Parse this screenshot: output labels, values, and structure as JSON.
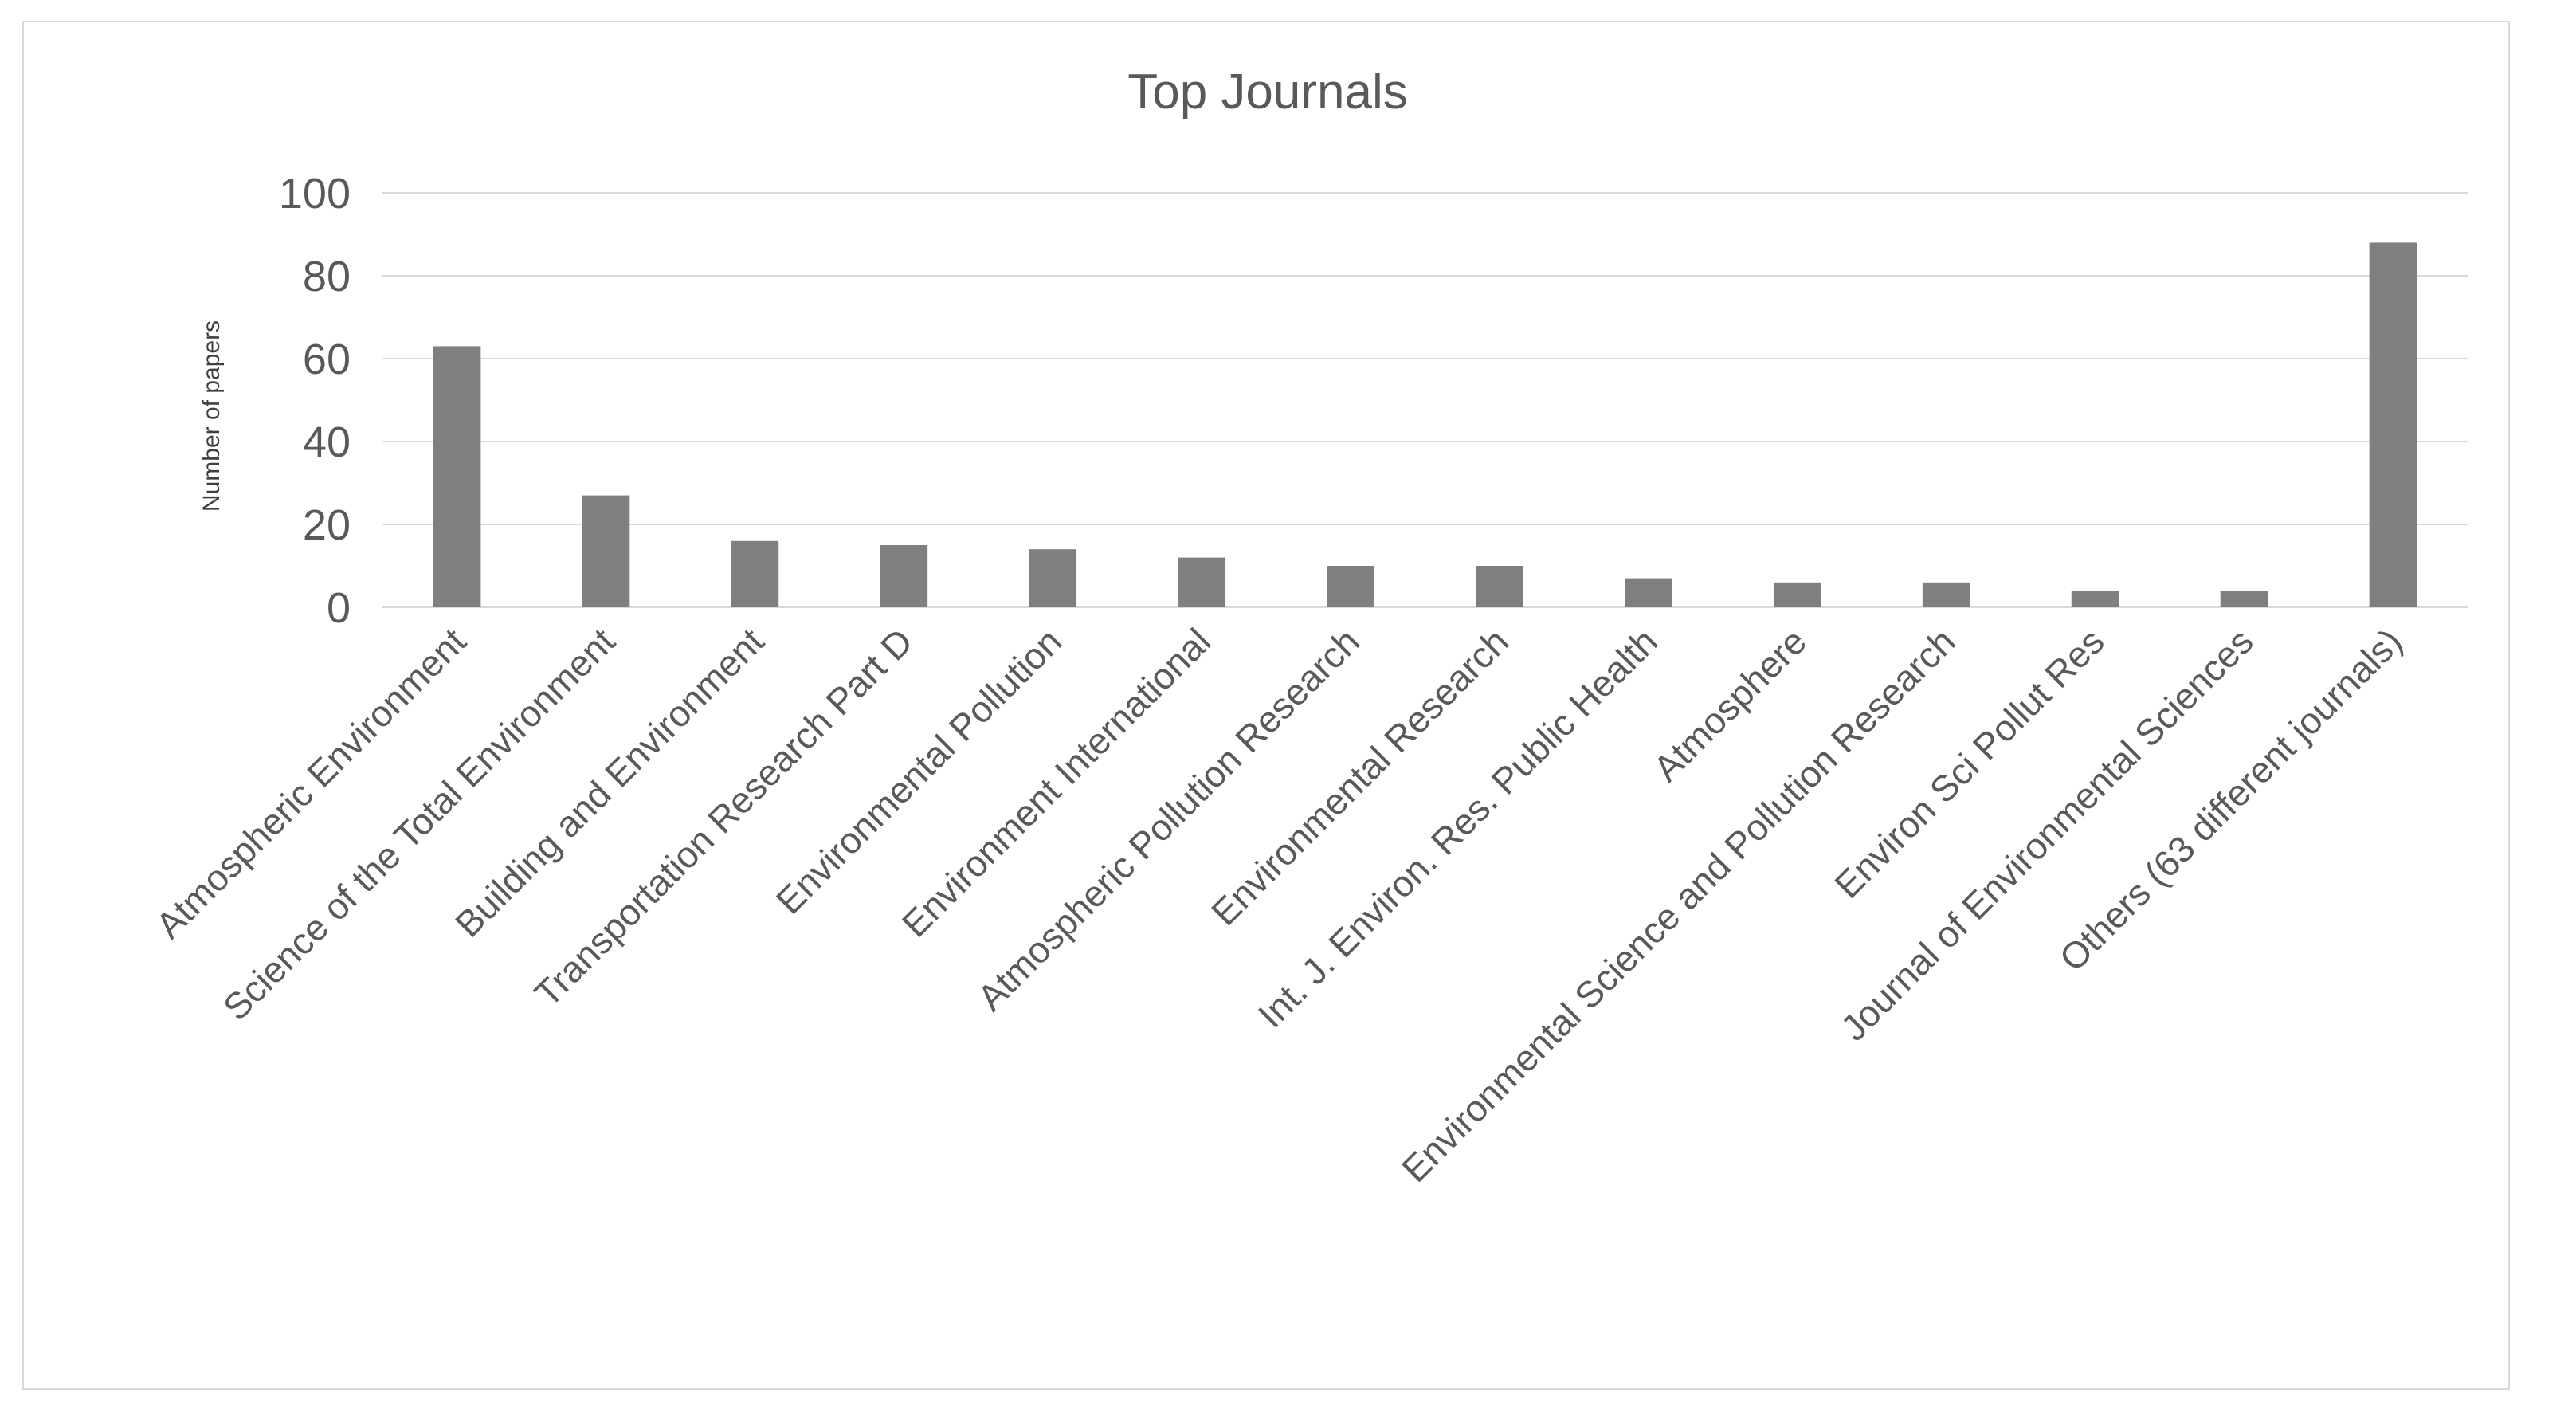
{
  "chart_data": {
    "type": "bar",
    "title": "Top Journals",
    "xlabel": "",
    "ylabel": "Number of papers",
    "ylim": [
      0,
      100
    ],
    "yticks": [
      0,
      20,
      40,
      60,
      80,
      100
    ],
    "grid": true,
    "legend": "none",
    "bar_color": "#7f7f7f",
    "categories": [
      "Atmospheric Environment",
      "Science of the Total Environment",
      "Building and Environment",
      "Transportation Research Part D",
      "Environmental Pollution",
      "Environment International",
      "Atmospheric Pollution Research",
      "Environmental Research",
      "Int. J. Environ. Res. Public Health",
      "Atmosphere",
      "Environmental Science and Pollution Research",
      "Environ Sci Pollut Res",
      "Journal of Environmental Sciences",
      "Others (63 different journals)"
    ],
    "values": [
      63,
      27,
      16,
      15,
      14,
      12,
      10,
      10,
      7,
      6,
      6,
      4,
      4,
      88
    ]
  },
  "colors": {
    "bar": "#7f7f7f",
    "grid": "#d9d9d9",
    "text": "#595959",
    "frame": "#d9d9d9"
  }
}
